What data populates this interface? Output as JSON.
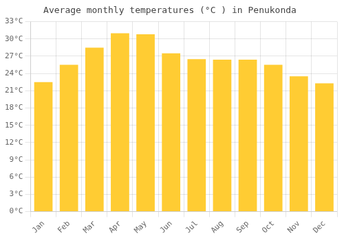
{
  "chart_data": {
    "type": "bar",
    "title": "Average monthly temperatures (°C ) in Penukonda",
    "categories": [
      "Jan",
      "Feb",
      "Mar",
      "Apr",
      "May",
      "Jun",
      "Jul",
      "Aug",
      "Sep",
      "Oct",
      "Nov",
      "Dec"
    ],
    "values": [
      22.5,
      25.5,
      28.5,
      31.0,
      30.8,
      27.5,
      26.5,
      26.4,
      26.4,
      25.5,
      23.5,
      22.3
    ],
    "color": "#FFCC33",
    "ylim": [
      0,
      33
    ],
    "yticks": [
      {
        "value": 0,
        "label": "0°C"
      },
      {
        "value": 3,
        "label": "3°C"
      },
      {
        "value": 6,
        "label": "6°C"
      },
      {
        "value": 9,
        "label": "9°C"
      },
      {
        "value": 12,
        "label": "12°C"
      },
      {
        "value": 15,
        "label": "15°C"
      },
      {
        "value": 18,
        "label": "18°C"
      },
      {
        "value": 21,
        "label": "21°C"
      },
      {
        "value": 24,
        "label": "24°C"
      },
      {
        "value": 27,
        "label": "27°C"
      },
      {
        "value": 30,
        "label": "30°C"
      },
      {
        "value": 33,
        "label": "33°C"
      }
    ],
    "grid": true
  }
}
